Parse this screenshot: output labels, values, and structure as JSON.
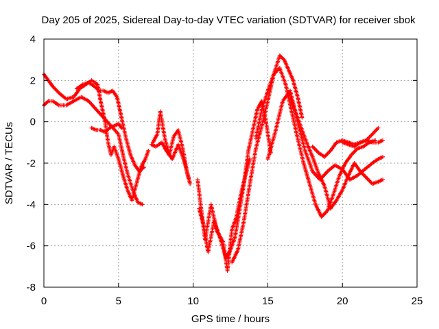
{
  "chart_data": {
    "type": "scatter",
    "title": "Day 205 of 2025, Sidereal Day-to-day VTEC variation (SDTVAR) for receiver sbok",
    "xlabel": "GPS time / hours",
    "ylabel": "SDTVAR / TECUs",
    "xlim": [
      0,
      25
    ],
    "ylim": [
      -8,
      4
    ],
    "xticks": [
      0,
      5,
      10,
      15,
      20,
      25
    ],
    "yticks": [
      -8,
      -6,
      -4,
      -2,
      0,
      2,
      4
    ],
    "xtick_labels": [
      "0",
      "5",
      "10",
      "15",
      "20",
      "25"
    ],
    "ytick_labels": [
      "-8",
      "-6",
      "-4",
      "-2",
      "0",
      "2",
      "4"
    ],
    "grid": true,
    "marker": "+",
    "color": "#ff0000",
    "series": [
      {
        "name": "arc-1",
        "x": [
          0,
          0.3,
          0.6,
          1.0,
          1.5,
          2.0,
          2.4,
          2.8,
          3.2,
          3.6,
          3.8,
          4.1,
          4.3,
          4.5,
          4.7,
          5.0,
          5.3,
          5.6,
          5.9,
          6.2,
          6.5,
          6.8,
          7.0
        ],
        "y": [
          2.3,
          2.0,
          1.7,
          1.4,
          1.1,
          1.2,
          1.6,
          1.8,
          2.0,
          1.8,
          1.0,
          0.0,
          -1.0,
          -1.6,
          -1.2,
          -1.8,
          -2.6,
          -3.3,
          -3.8,
          -3.0,
          -2.2,
          -1.8,
          -1.4
        ]
      },
      {
        "name": "arc-2",
        "x": [
          0,
          0.3,
          0.6,
          1.0,
          1.5,
          2.0,
          2.5,
          3.0,
          3.5,
          4.0,
          4.5,
          5.0,
          5.3,
          5.6,
          6.0,
          6.3,
          6.6
        ],
        "y": [
          0.8,
          1.0,
          1.0,
          0.8,
          0.8,
          1.0,
          1.2,
          1.0,
          0.6,
          0.2,
          -0.2,
          -0.6,
          -1.6,
          -2.5,
          -3.4,
          -3.9,
          -4.0
        ]
      },
      {
        "name": "arc-3",
        "x": [
          2.2,
          2.6,
          3.0,
          3.4,
          3.7,
          4.0,
          4.3,
          4.6,
          4.9,
          5.2,
          5.5,
          5.8,
          6.1,
          6.4,
          6.7
        ],
        "y": [
          1.6,
          1.8,
          1.9,
          1.7,
          1.5,
          1.5,
          1.4,
          1.5,
          1.2,
          0.2,
          -0.8,
          -1.6,
          -2.1,
          -2.4,
          -2.2
        ]
      },
      {
        "name": "arc-4",
        "x": [
          3.2,
          3.5,
          3.8,
          4.1,
          4.4,
          4.7,
          5.0,
          5.2
        ],
        "y": [
          -0.3,
          -0.4,
          -0.4,
          -0.5,
          -0.3,
          -0.2,
          -0.1,
          -0.3
        ]
      },
      {
        "name": "arc-5",
        "x": [
          7.3,
          7.6,
          7.8,
          8.1,
          8.4,
          8.7,
          9.0,
          9.3,
          9.6,
          9.8
        ],
        "y": [
          -1.0,
          -0.6,
          0.5,
          -0.8,
          -1.6,
          -0.7,
          -0.4,
          -1.3,
          -2.5,
          -3.0
        ]
      },
      {
        "name": "arc-6",
        "x": [
          7.2,
          7.5,
          7.9,
          8.2,
          8.6,
          9.0,
          9.4,
          9.7
        ],
        "y": [
          -1.1,
          -1.2,
          -1.0,
          -1.4,
          -1.8,
          -1.1,
          -1.9,
          -2.7
        ]
      },
      {
        "name": "arc-7",
        "x": [
          10.3,
          10.5,
          10.8,
          11.2,
          11.6,
          12.0,
          12.3,
          12.6,
          12.9,
          13.2,
          13.5,
          13.8
        ],
        "y": [
          -2.8,
          -4.0,
          -5.7,
          -4.0,
          -5.3,
          -5.8,
          -7.2,
          -5.2,
          -4.6,
          -3.5,
          -2.6,
          -1.8
        ]
      },
      {
        "name": "arc-8",
        "x": [
          10.4,
          10.7,
          11.0,
          11.4,
          11.8,
          12.2,
          12.5,
          12.8,
          13.1,
          13.4,
          13.7,
          14.0,
          14.3,
          14.6,
          14.9,
          15.2
        ],
        "y": [
          -4.2,
          -5.0,
          -6.3,
          -4.8,
          -5.6,
          -6.6,
          -6.2,
          -5.6,
          -4.3,
          -3.0,
          -1.4,
          -0.4,
          0.6,
          1.0,
          -0.1,
          -1.5
        ]
      },
      {
        "name": "arc-9",
        "x": [
          12.6,
          13.0,
          13.4,
          13.8,
          14.2,
          14.6,
          15.0,
          15.4,
          15.8,
          16.1,
          16.4,
          16.7,
          17.0,
          17.3
        ],
        "y": [
          -6.8,
          -6.2,
          -4.8,
          -3.0,
          -1.3,
          -0.2,
          1.0,
          2.3,
          3.2,
          3.0,
          2.5,
          2.0,
          1.2,
          0.2
        ]
      },
      {
        "name": "arc-10",
        "x": [
          14.2,
          14.6,
          15.0,
          15.4,
          15.8,
          16.2,
          16.6,
          17.0,
          17.4,
          17.8,
          18.2,
          18.6,
          19.0,
          19.4,
          19.8,
          20.2,
          20.6,
          21.0,
          21.4,
          21.8,
          22.2
        ],
        "y": [
          -0.8,
          0.6,
          1.5,
          2.3,
          2.6,
          1.8,
          0.5,
          -0.8,
          -2.0,
          -3.0,
          -4.0,
          -4.6,
          -4.3,
          -3.5,
          -2.6,
          -2.0,
          -1.6,
          -1.3,
          -1.2,
          -1.0,
          -0.9
        ]
      },
      {
        "name": "arc-11",
        "x": [
          15.0,
          15.5,
          16.0,
          16.5,
          17.0,
          17.5,
          18.0,
          18.5,
          19.0,
          19.5,
          20.0,
          20.5,
          21.0,
          21.5,
          22.0,
          22.4,
          22.7
        ],
        "y": [
          -1.8,
          -0.5,
          1.0,
          1.5,
          0.0,
          -1.4,
          -2.4,
          -2.8,
          -2.4,
          -2.1,
          -2.3,
          -2.8,
          -2.6,
          -2.3,
          -2.0,
          -1.8,
          -1.7
        ]
      },
      {
        "name": "arc-12",
        "x": [
          16.4,
          16.8,
          17.2,
          17.6,
          18.0,
          18.4,
          18.8,
          19.2,
          19.6,
          20.0,
          20.4,
          20.8,
          21.2,
          21.6,
          22.0,
          22.4,
          22.7
        ],
        "y": [
          1.4,
          0.6,
          -0.2,
          -1.0,
          -1.7,
          -2.5,
          -3.1,
          -4.2,
          -3.8,
          -3.3,
          -2.6,
          -2.0,
          -2.4,
          -2.7,
          -3.0,
          -2.9,
          -2.8
        ]
      },
      {
        "name": "arc-13",
        "x": [
          18.0,
          18.4,
          18.8,
          19.2,
          19.6,
          20.0,
          20.4,
          20.8,
          21.2,
          21.6,
          22.0,
          22.4
        ],
        "y": [
          -1.2,
          -1.5,
          -1.7,
          -1.4,
          -1.0,
          -0.9,
          -1.0,
          -1.1,
          -1.0,
          -0.9,
          -0.6,
          -0.3
        ]
      },
      {
        "name": "arc-14",
        "x": [
          20.0,
          20.4,
          20.8,
          21.2,
          21.6,
          22.0,
          22.4,
          22.7
        ],
        "y": [
          -1.0,
          -1.1,
          -1.2,
          -1.0,
          -0.9,
          -1.0,
          -1.0,
          -0.9
        ]
      }
    ]
  }
}
